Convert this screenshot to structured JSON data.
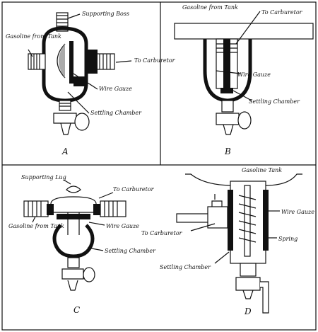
{
  "panels": {
    "a": {
      "caption": "A",
      "labels": {
        "supporting_boss": "Supporting Boss",
        "gasoline_from_tank": "Gasoline from Tank",
        "to_carburetor": "To Carburetor",
        "wire_gauze": "Wire Gauze",
        "settling_chamber": "Settling Chamber"
      }
    },
    "b": {
      "caption": "B",
      "labels": {
        "gasoline_from_tank": "Gasoline from Tank",
        "to_carburetor": "To Carburetor",
        "wire_gauze": "Wire Gauze",
        "settling_chamber": "Settling Chamber"
      }
    },
    "c": {
      "caption": "C",
      "labels": {
        "supporting_lug": "Supporting Lug",
        "to_carburetor": "To Carburetor",
        "gasoline_from_tank": "Gasoline from Tank",
        "wire_gauze": "Wire Gauze",
        "settling_chamber": "Settling Chamber"
      }
    },
    "d": {
      "caption": "D",
      "labels": {
        "gasoline_tank": "Gasoline Tank",
        "wire_gauze": "Wire Gauze",
        "to_carburetor": "To Carburetor",
        "spring": "Spring",
        "settling_chamber": "Settling Chamber"
      }
    }
  }
}
